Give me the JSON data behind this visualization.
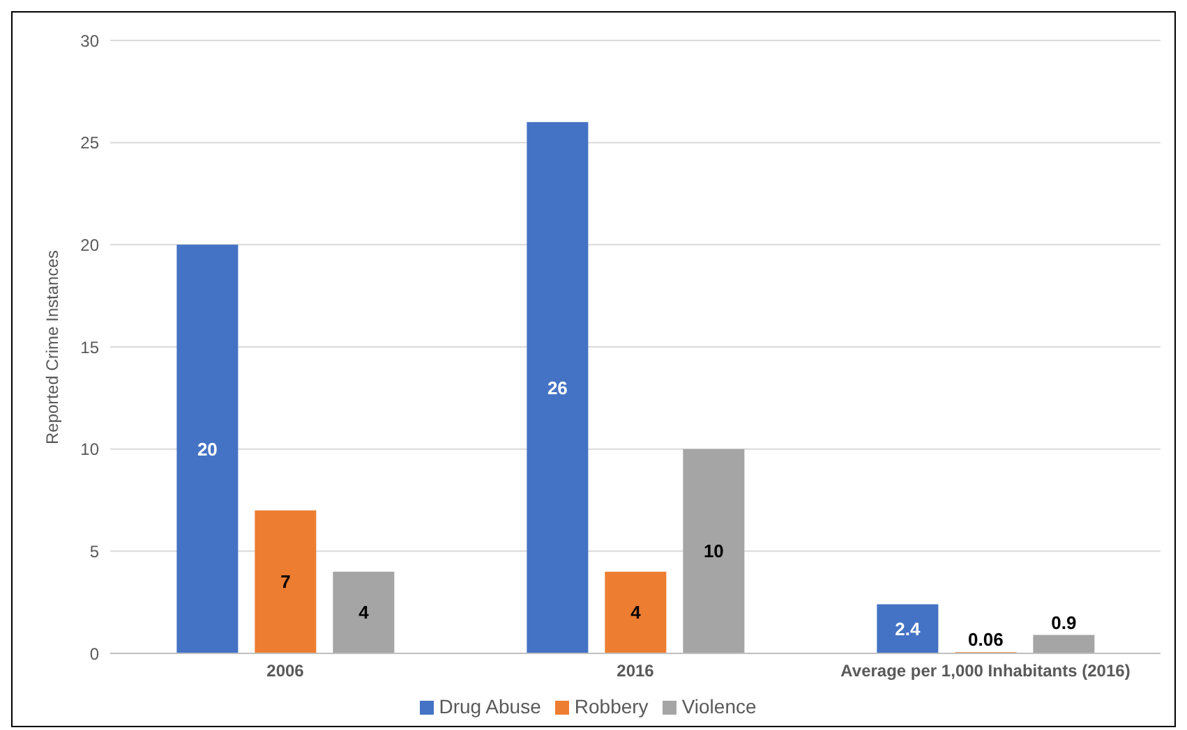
{
  "chart_data": {
    "type": "bar",
    "ylabel": "Reported Crime Instances",
    "categories": [
      "2006",
      "2016",
      "Average per 1,000 Inhabitants (2016)"
    ],
    "series": [
      {
        "name": "Drug Abuse",
        "color": "#4472c4",
        "values": [
          20,
          26,
          2.4
        ]
      },
      {
        "name": "Robbery",
        "color": "#ed7d31",
        "values": [
          7,
          4,
          0.06
        ]
      },
      {
        "name": "Violence",
        "color": "#a5a5a5",
        "values": [
          4,
          10,
          0.9
        ]
      }
    ],
    "ylim": [
      0,
      30
    ],
    "yticks": [
      0,
      5,
      10,
      15,
      20,
      25,
      30
    ],
    "grid": "y",
    "legend": "bottom",
    "data_labels": true
  }
}
